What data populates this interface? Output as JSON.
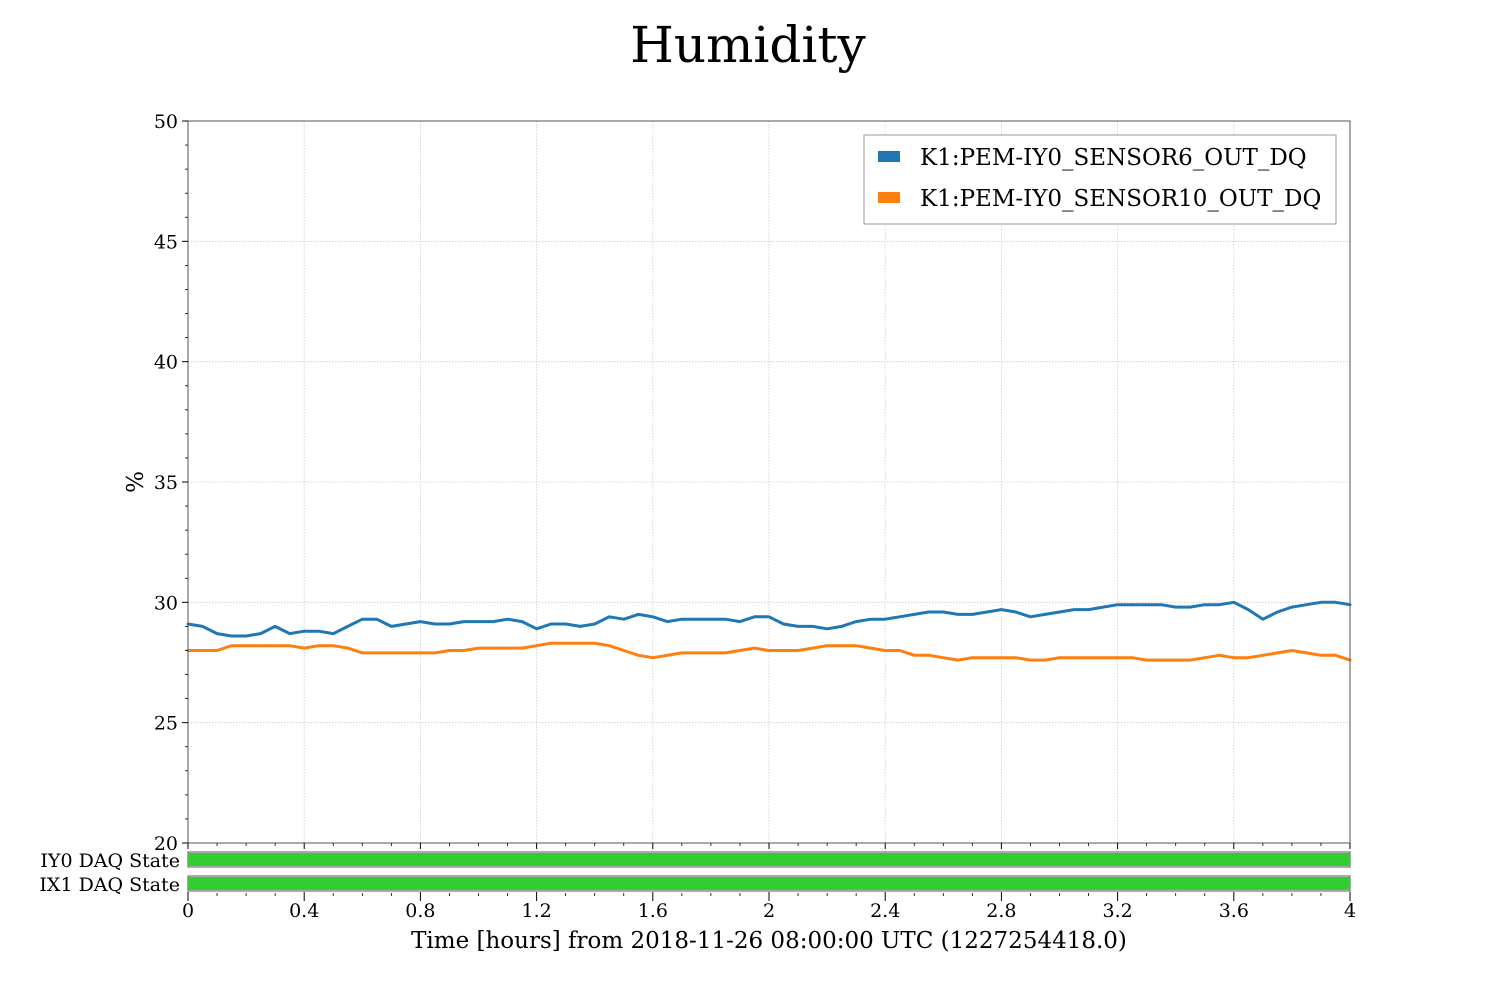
{
  "chart_data": {
    "type": "line",
    "title": "Humidity",
    "xlabel": "Time [hours] from 2018-11-26 08:00:00 UTC (1227254418.0)",
    "ylabel": "%",
    "xlim": [
      0,
      4
    ],
    "ylim": [
      20,
      50
    ],
    "x_ticks": [
      "0",
      "0.4",
      "0.8",
      "1.2",
      "1.6",
      "2",
      "2.4",
      "2.8",
      "3.2",
      "3.6",
      "4"
    ],
    "y_ticks": [
      "20",
      "25",
      "30",
      "35",
      "40",
      "45",
      "50"
    ],
    "grid": true,
    "legend_position": "top-right",
    "series": [
      {
        "name": "K1:PEM-IY0_SENSOR6_OUT_DQ",
        "color": "#1f77b4",
        "x": [
          0,
          0.05,
          0.1,
          0.15,
          0.2,
          0.25,
          0.3,
          0.35,
          0.4,
          0.45,
          0.5,
          0.55,
          0.6,
          0.65,
          0.7,
          0.75,
          0.8,
          0.85,
          0.9,
          0.95,
          1.0,
          1.05,
          1.1,
          1.15,
          1.2,
          1.25,
          1.3,
          1.35,
          1.4,
          1.45,
          1.5,
          1.55,
          1.6,
          1.65,
          1.7,
          1.75,
          1.8,
          1.85,
          1.9,
          1.95,
          2.0,
          2.05,
          2.1,
          2.15,
          2.2,
          2.25,
          2.3,
          2.35,
          2.4,
          2.45,
          2.5,
          2.55,
          2.6,
          2.65,
          2.7,
          2.75,
          2.8,
          2.85,
          2.9,
          2.95,
          3.0,
          3.05,
          3.1,
          3.15,
          3.2,
          3.25,
          3.3,
          3.35,
          3.4,
          3.45,
          3.5,
          3.55,
          3.6,
          3.65,
          3.7,
          3.75,
          3.8,
          3.85,
          3.9,
          3.95,
          4.0
        ],
        "values": [
          29.1,
          29.0,
          28.7,
          28.6,
          28.6,
          28.7,
          29.0,
          28.7,
          28.8,
          28.8,
          28.7,
          29.0,
          29.3,
          29.3,
          29.0,
          29.1,
          29.2,
          29.1,
          29.1,
          29.2,
          29.2,
          29.2,
          29.3,
          29.2,
          28.9,
          29.1,
          29.1,
          29.0,
          29.1,
          29.4,
          29.3,
          29.5,
          29.4,
          29.2,
          29.3,
          29.3,
          29.3,
          29.3,
          29.2,
          29.4,
          29.4,
          29.1,
          29.0,
          29.0,
          28.9,
          29.0,
          29.2,
          29.3,
          29.3,
          29.4,
          29.5,
          29.6,
          29.6,
          29.5,
          29.5,
          29.6,
          29.7,
          29.6,
          29.4,
          29.5,
          29.6,
          29.7,
          29.7,
          29.8,
          29.9,
          29.9,
          29.9,
          29.9,
          29.8,
          29.8,
          29.9,
          29.9,
          30.0,
          29.7,
          29.3,
          29.6,
          29.8,
          29.9,
          30.0,
          30.0,
          29.9
        ]
      },
      {
        "name": "K1:PEM-IY0_SENSOR10_OUT_DQ",
        "color": "#ff7f0e",
        "x": [
          0,
          0.05,
          0.1,
          0.15,
          0.2,
          0.25,
          0.3,
          0.35,
          0.4,
          0.45,
          0.5,
          0.55,
          0.6,
          0.65,
          0.7,
          0.75,
          0.8,
          0.85,
          0.9,
          0.95,
          1.0,
          1.05,
          1.1,
          1.15,
          1.2,
          1.25,
          1.3,
          1.35,
          1.4,
          1.45,
          1.5,
          1.55,
          1.6,
          1.65,
          1.7,
          1.75,
          1.8,
          1.85,
          1.9,
          1.95,
          2.0,
          2.05,
          2.1,
          2.15,
          2.2,
          2.25,
          2.3,
          2.35,
          2.4,
          2.45,
          2.5,
          2.55,
          2.6,
          2.65,
          2.7,
          2.75,
          2.8,
          2.85,
          2.9,
          2.95,
          3.0,
          3.05,
          3.1,
          3.15,
          3.2,
          3.25,
          3.3,
          3.35,
          3.4,
          3.45,
          3.5,
          3.55,
          3.6,
          3.65,
          3.7,
          3.75,
          3.8,
          3.85,
          3.9,
          3.95,
          4.0
        ],
        "values": [
          28.0,
          28.0,
          28.0,
          28.2,
          28.2,
          28.2,
          28.2,
          28.2,
          28.1,
          28.2,
          28.2,
          28.1,
          27.9,
          27.9,
          27.9,
          27.9,
          27.9,
          27.9,
          28.0,
          28.0,
          28.1,
          28.1,
          28.1,
          28.1,
          28.2,
          28.3,
          28.3,
          28.3,
          28.3,
          28.2,
          28.0,
          27.8,
          27.7,
          27.8,
          27.9,
          27.9,
          27.9,
          27.9,
          28.0,
          28.1,
          28.0,
          28.0,
          28.0,
          28.1,
          28.2,
          28.2,
          28.2,
          28.1,
          28.0,
          28.0,
          27.8,
          27.8,
          27.7,
          27.6,
          27.7,
          27.7,
          27.7,
          27.7,
          27.6,
          27.6,
          27.7,
          27.7,
          27.7,
          27.7,
          27.7,
          27.7,
          27.6,
          27.6,
          27.6,
          27.6,
          27.7,
          27.8,
          27.7,
          27.7,
          27.8,
          27.9,
          28.0,
          27.9,
          27.8,
          27.8,
          27.6
        ]
      }
    ],
    "state_panels": [
      {
        "label": "IY0 DAQ State",
        "color": "#33cc33",
        "active_from": 0,
        "active_to": 4
      },
      {
        "label": "IX1 DAQ State",
        "color": "#33cc33",
        "active_from": 0,
        "active_to": 4
      }
    ]
  }
}
